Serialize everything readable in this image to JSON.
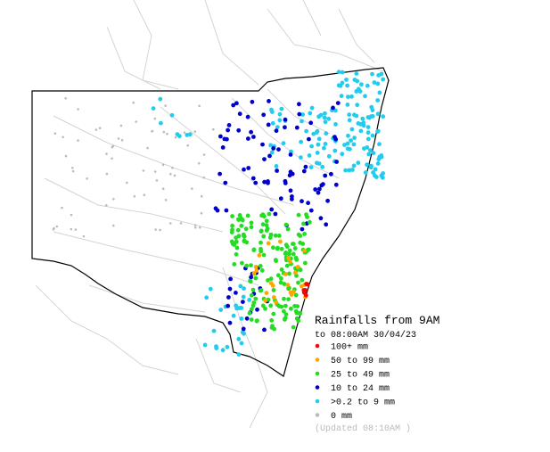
{
  "legend": {
    "title": "Rainfalls from 9AM",
    "subtitle": "to 08:00AM 30/04/23",
    "items": [
      {
        "label": "100+ mm",
        "color": "#ff0000"
      },
      {
        "label": "50  to 99 mm",
        "color": "#ffa500"
      },
      {
        "label": "25  to 49 mm",
        "color": "#22dd22"
      },
      {
        "label": "10  to 24 mm",
        "color": "#0000cc"
      },
      {
        "label": ">0.2 to 9 mm",
        "color": "#22ccee"
      },
      {
        "label": "0 mm",
        "color": "#bbbbbb"
      }
    ],
    "updated": "(Updated 08:10AM  )"
  }
}
